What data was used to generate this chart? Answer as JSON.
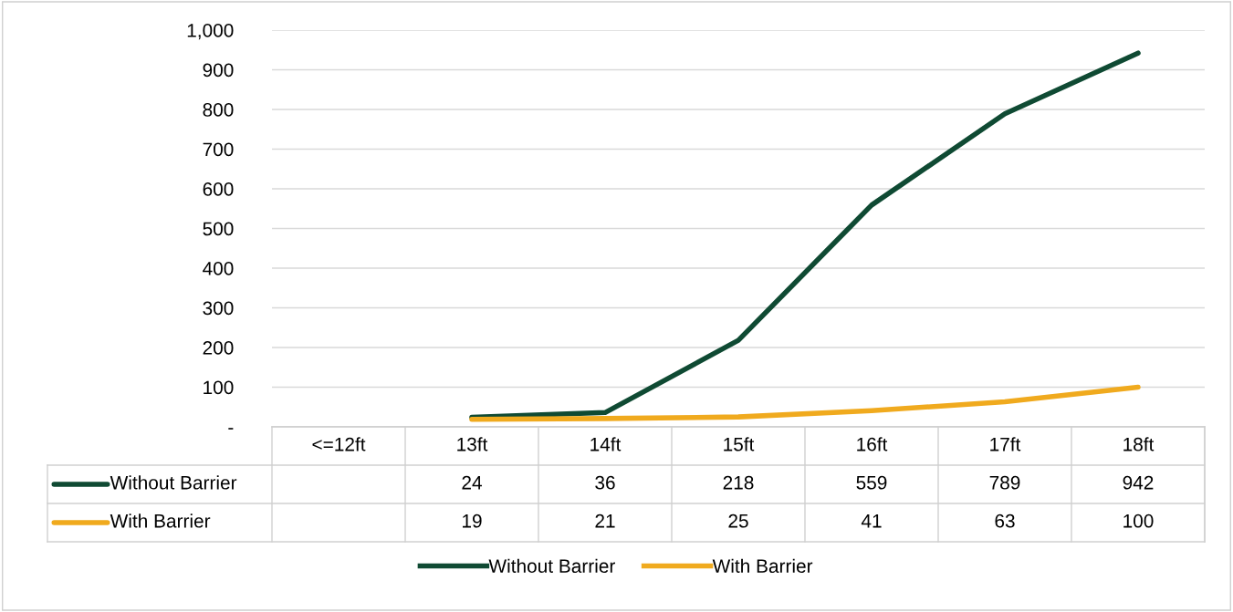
{
  "chart_data": {
    "type": "line",
    "categories": [
      "<=12ft",
      "13ft",
      "14ft",
      "15ft",
      "16ft",
      "17ft",
      "18ft"
    ],
    "series": [
      {
        "name": "Without Barrier",
        "color": "#0f4a33",
        "values": [
          null,
          24,
          36,
          218,
          559,
          789,
          942
        ]
      },
      {
        "name": "With Barrier",
        "color": "#f0aa1e",
        "values": [
          null,
          19,
          21,
          25,
          41,
          63,
          100
        ]
      }
    ],
    "ylim": [
      0,
      1000
    ],
    "yticks": [
      {
        "value": 0,
        "label": "-"
      },
      100,
      200,
      300,
      400,
      500,
      600,
      700,
      800,
      900,
      {
        "value": 1000,
        "label": "1,000"
      }
    ],
    "grid": "y",
    "legend": "bottom",
    "data_labels": true,
    "marker": "none",
    "line_style": "solid"
  }
}
